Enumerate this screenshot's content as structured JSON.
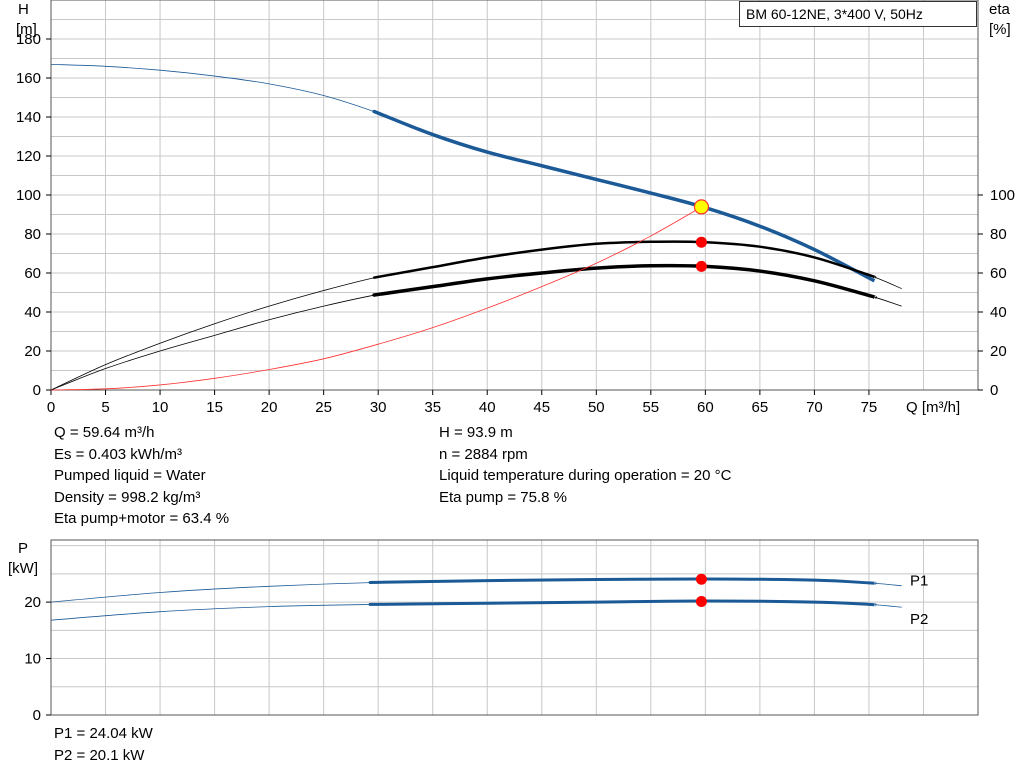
{
  "title": "BM 60-12NE, 3*400 V, 50Hz",
  "main_chart": {
    "y_left_label": [
      "H",
      "[m]"
    ],
    "y_right_label": [
      "eta",
      "[%]"
    ],
    "x_label": "Q [m³/h]"
  },
  "power_chart": {
    "y_label": [
      "P",
      "[kW]"
    ],
    "series_labels": [
      "P1",
      "P2"
    ]
  },
  "info_left": [
    "Q = 59.64 m³/h",
    "Es = 0.403 kWh/m³",
    "Pumped liquid = Water",
    "Density = 998.2 kg/m³",
    "Eta pump+motor = 63.4 %"
  ],
  "info_right": [
    "H = 93.9 m",
    "n = 2884 rpm",
    "Liquid temperature during operation = 20 °C",
    "Eta pump = 75.8 %"
  ],
  "power_info": [
    "P1 = 24.04 kW",
    "P2 = 20.1 kW"
  ],
  "colors": {
    "head_curve": "#1b5a96",
    "eta_curves": "#000000",
    "system_curve": "#ff3030",
    "duty_point": "#ff0000",
    "duty_point_head": "#ffff00",
    "grid": "#c8c8c8",
    "power_label": "#1b5a96"
  },
  "chart_data": [
    {
      "type": "line",
      "name": "head",
      "xlabel": "Q [m³/h]",
      "ylabel": "H [m]",
      "y2label": "eta [%]",
      "xlim": [
        0,
        85
      ],
      "ylim": [
        0,
        200
      ],
      "y2lim": [
        0,
        100
      ],
      "x_ticks": [
        0,
        5,
        10,
        15,
        20,
        25,
        30,
        35,
        40,
        45,
        50,
        55,
        60,
        65,
        70,
        75
      ],
      "y_ticks": [
        0,
        20,
        40,
        60,
        80,
        100,
        120,
        140,
        160,
        180
      ],
      "y2_ticks": [
        0,
        20,
        40,
        60,
        80,
        100
      ],
      "grid": true,
      "series": [
        {
          "key": "head",
          "axis": "left",
          "range": [
            30,
            75.5
          ],
          "x": [
            0,
            5,
            10,
            15,
            20,
            25,
            30,
            35,
            40,
            45,
            50,
            55,
            60,
            65,
            70,
            75.5
          ],
          "y": [
            167,
            166,
            164,
            161,
            157,
            151,
            142,
            131,
            122,
            115,
            108,
            101,
            93.5,
            84,
            72,
            56
          ]
        },
        {
          "key": "eta_pump",
          "axis": "left",
          "range": [
            30,
            75.5
          ],
          "x": [
            0,
            5,
            10,
            15,
            20,
            25,
            30,
            35,
            40,
            45,
            50,
            55,
            60,
            65,
            70,
            75,
            78
          ],
          "y": [
            0,
            13,
            24,
            34,
            43,
            51,
            58,
            63,
            68,
            72,
            75,
            76,
            75.8,
            73.5,
            68,
            59,
            52
          ]
        },
        {
          "key": "eta_total",
          "axis": "left",
          "range": [
            30,
            75.5
          ],
          "x": [
            0,
            5,
            10,
            15,
            20,
            25,
            30,
            35,
            40,
            45,
            50,
            55,
            60,
            65,
            70,
            75,
            78
          ],
          "y": [
            0,
            11,
            20,
            28,
            36,
            43,
            49,
            53,
            57,
            60,
            62.5,
            63.7,
            63.4,
            61,
            56,
            48.5,
            43
          ]
        },
        {
          "key": "system",
          "axis": "left",
          "x": [
            0,
            5,
            10,
            15,
            20,
            25,
            30,
            35,
            40,
            45,
            50,
            55,
            60
          ],
          "y": [
            0,
            0.6,
            2.6,
            6,
            10.5,
            16,
            23.5,
            32,
            42,
            53,
            65,
            79,
            95
          ]
        }
      ],
      "duty_points": [
        {
          "x": 59.64,
          "y": 93.9,
          "kind": "head"
        },
        {
          "x": 59.64,
          "y": 75.8,
          "kind": "eta"
        },
        {
          "x": 59.64,
          "y": 63.4,
          "kind": "eta"
        }
      ]
    },
    {
      "type": "line",
      "name": "power",
      "xlabel": "",
      "ylabel": "P [kW]",
      "xlim": [
        0,
        85
      ],
      "ylim": [
        0,
        31
      ],
      "y_ticks": [
        0,
        10,
        20
      ],
      "grid": true,
      "series": [
        {
          "key": "P1",
          "range": [
            30,
            75.5
          ],
          "x": [
            0,
            10,
            20,
            30,
            40,
            50,
            60,
            70,
            75,
            78
          ],
          "y": [
            20,
            21.7,
            22.8,
            23.5,
            23.8,
            24.0,
            24.1,
            23.9,
            23.4,
            22.9
          ]
        },
        {
          "key": "P2",
          "range": [
            30,
            75.5
          ],
          "x": [
            0,
            10,
            20,
            30,
            40,
            50,
            60,
            70,
            75,
            78
          ],
          "y": [
            16.8,
            18.3,
            19.2,
            19.6,
            19.8,
            20.0,
            20.2,
            20.0,
            19.6,
            19.1
          ]
        }
      ],
      "duty_points": [
        {
          "x": 59.64,
          "y": 24.04
        },
        {
          "x": 59.64,
          "y": 20.1
        }
      ]
    }
  ]
}
